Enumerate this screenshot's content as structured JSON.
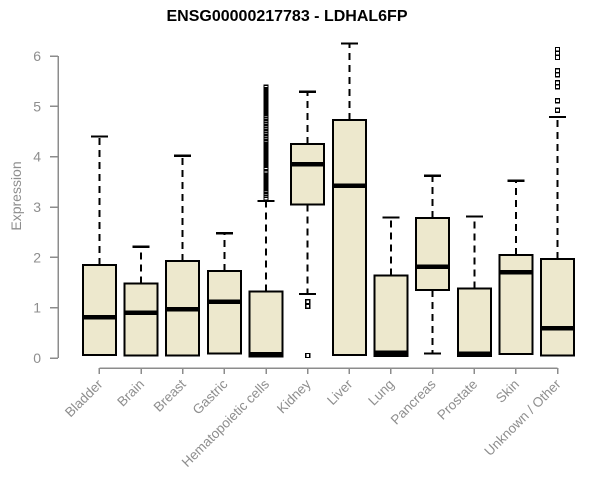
{
  "chart_data": {
    "type": "boxplot",
    "title": "ENSG00000217783 - LDHAL6FP",
    "ylabel": "Expression",
    "ylim": [
      0,
      6
    ],
    "yticks": [
      0,
      1,
      2,
      3,
      4,
      5,
      6
    ],
    "grid": false,
    "legend": "none",
    "categories": [
      "Bladder",
      "Brain",
      "Breast",
      "Gastric",
      "Hematopoietic cells",
      "Kidney",
      "Liver",
      "Lung",
      "Pancreas",
      "Prostate",
      "Skin",
      "Unknown / Other"
    ],
    "series": [
      {
        "category": "Bladder",
        "q1": 0.06,
        "median": 0.81,
        "q3": 1.85,
        "whisker_low": null,
        "whisker_high": 4.4,
        "outliers": []
      },
      {
        "category": "Brain",
        "q1": 0.05,
        "median": 0.9,
        "q3": 1.48,
        "whisker_low": null,
        "whisker_high": 2.21,
        "outliers": []
      },
      {
        "category": "Breast",
        "q1": 0.05,
        "median": 0.97,
        "q3": 1.93,
        "whisker_low": null,
        "whisker_high": 4.02,
        "outliers": []
      },
      {
        "category": "Gastric",
        "q1": 0.09,
        "median": 1.12,
        "q3": 1.73,
        "whisker_low": null,
        "whisker_high": 2.48,
        "outliers": []
      },
      {
        "category": "Hematopoietic cells",
        "q1": 0.03,
        "median": 0.07,
        "q3": 1.32,
        "whisker_low": null,
        "whisker_high": 3.12,
        "outliers": [
          3.18,
          3.23,
          3.28,
          3.33,
          3.38,
          3.43,
          3.48,
          3.53,
          3.58,
          3.63,
          3.68,
          3.78,
          3.83,
          3.88,
          3.93,
          3.98,
          4.03,
          4.08,
          4.13,
          4.18,
          4.23,
          4.28,
          4.33,
          4.38,
          4.43,
          4.48,
          4.53,
          4.58,
          4.63,
          4.68,
          4.73,
          4.78,
          4.83,
          4.88,
          4.93,
          4.98,
          5.03,
          5.08,
          5.13,
          5.18,
          5.23,
          5.28,
          5.33,
          5.38
        ]
      },
      {
        "category": "Kidney",
        "q1": 3.05,
        "median": 3.85,
        "q3": 4.25,
        "whisker_low": 1.27,
        "whisker_high": 5.29,
        "outliers": [
          1.12,
          1.03,
          0.05
        ]
      },
      {
        "category": "Liver",
        "q1": 0.06,
        "median": 3.42,
        "q3": 4.73,
        "whisker_low": null,
        "whisker_high": 6.25,
        "outliers": []
      },
      {
        "category": "Lung",
        "q1": 0.04,
        "median": 0.1,
        "q3": 1.64,
        "whisker_low": null,
        "whisker_high": 2.79,
        "outliers": []
      },
      {
        "category": "Pancreas",
        "q1": 1.35,
        "median": 1.81,
        "q3": 2.78,
        "whisker_low": 0.09,
        "whisker_high": 3.62,
        "outliers": []
      },
      {
        "category": "Prostate",
        "q1": 0.04,
        "median": 0.08,
        "q3": 1.38,
        "whisker_low": null,
        "whisker_high": 2.81,
        "outliers": []
      },
      {
        "category": "Skin",
        "q1": 0.08,
        "median": 1.7,
        "q3": 2.05,
        "whisker_low": null,
        "whisker_high": 3.52,
        "outliers": []
      },
      {
        "category": "Unknown / Other",
        "q1": 0.05,
        "median": 0.59,
        "q3": 1.97,
        "whisker_low": null,
        "whisker_high": 4.79,
        "outliers": [
          6.13,
          6.06,
          5.97,
          5.71,
          5.63,
          5.47,
          5.39,
          5.11,
          4.92
        ]
      }
    ],
    "colors": {
      "box_fill": "#EDE8CD",
      "box_stroke": "#000000",
      "median": "#000000",
      "whisker": "#000000",
      "outlier": "#000000",
      "axis_line": "#8C8C8C",
      "axis_text": "#8E8E8E",
      "title_text": "#000000",
      "background": "#FFFFFF"
    }
  }
}
